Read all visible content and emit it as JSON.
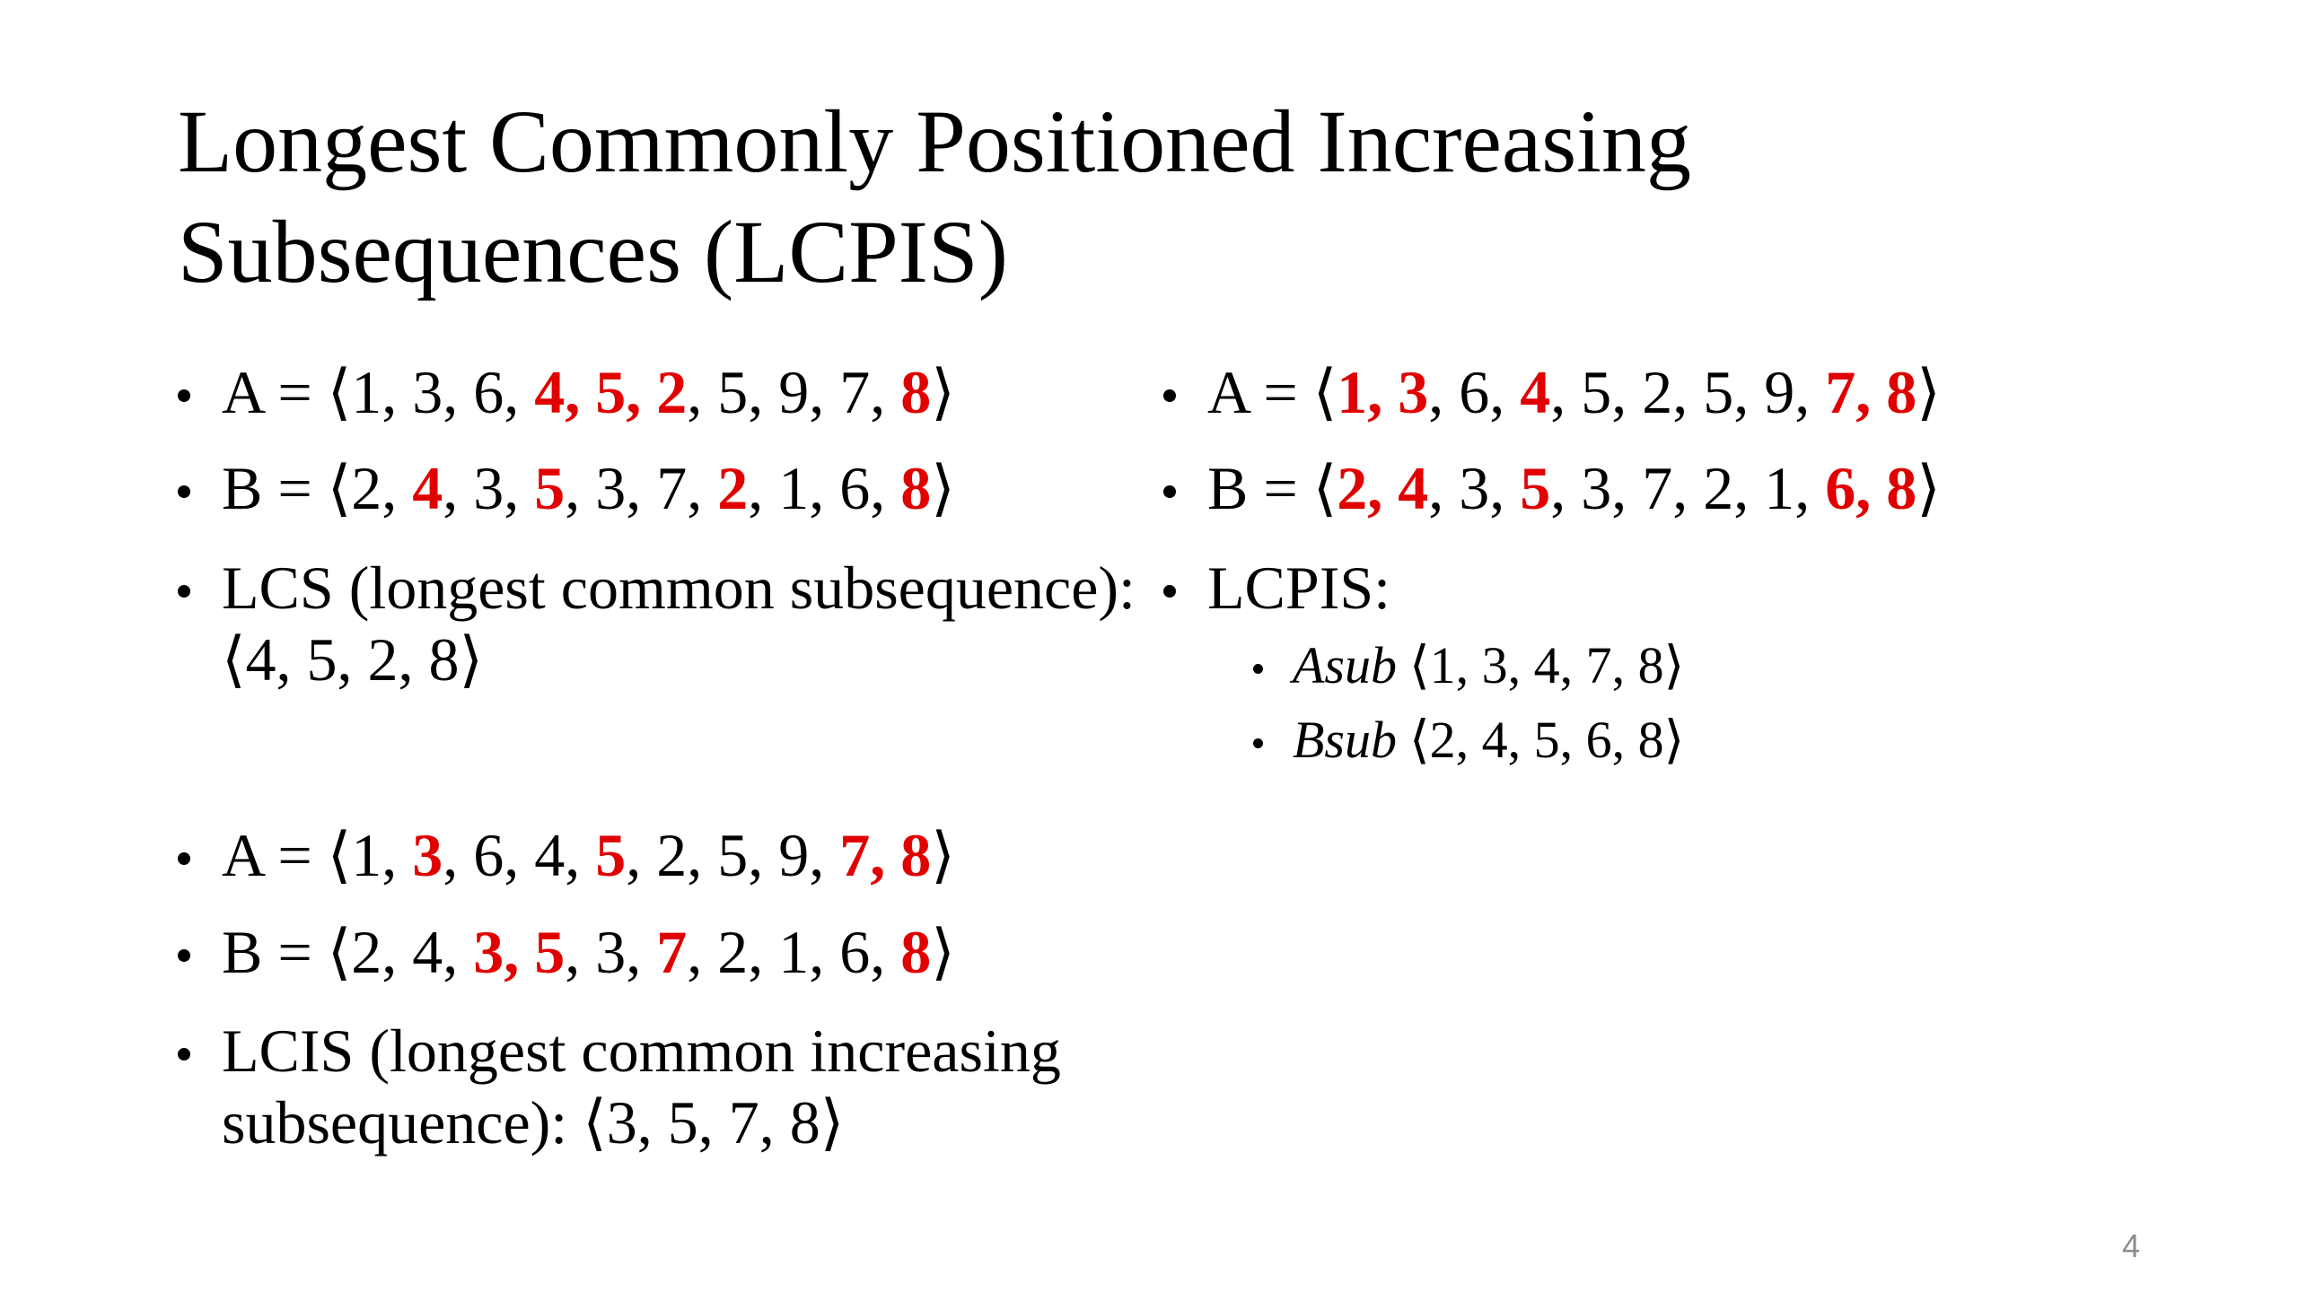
{
  "title": "Longest Commonly Positioned Increasing Subsequences (LCPIS)",
  "page_number": "4",
  "left_top": {
    "sequences": [
      {
        "prefix": "A = ⟨",
        "separator": ", ",
        "suffix": "⟩",
        "items": [
          {
            "value": 1,
            "highlight": false
          },
          {
            "value": 3,
            "highlight": false
          },
          {
            "value": 6,
            "highlight": false
          },
          {
            "value": 4,
            "highlight": true
          },
          {
            "value": 5,
            "highlight": true
          },
          {
            "value": 2,
            "highlight": true
          },
          {
            "value": 5,
            "highlight": false
          },
          {
            "value": 9,
            "highlight": false
          },
          {
            "value": 7,
            "highlight": false
          },
          {
            "value": 8,
            "highlight": true
          }
        ]
      },
      {
        "prefix": "B = ⟨",
        "separator": ", ",
        "suffix": "⟩",
        "items": [
          {
            "value": 2,
            "highlight": false
          },
          {
            "value": 4,
            "highlight": true
          },
          {
            "value": 3,
            "highlight": false
          },
          {
            "value": 5,
            "highlight": true
          },
          {
            "value": 3,
            "highlight": false
          },
          {
            "value": 7,
            "highlight": false
          },
          {
            "value": 2,
            "highlight": true
          },
          {
            "value": 1,
            "highlight": false
          },
          {
            "value": 6,
            "highlight": false
          },
          {
            "value": 8,
            "highlight": true
          }
        ]
      }
    ],
    "result": "LCS (longest common subsequence): ⟨4, 5, 2, 8⟩"
  },
  "left_bottom": {
    "sequences": [
      {
        "prefix": "A = ⟨",
        "separator": ", ",
        "suffix": "⟩",
        "items": [
          {
            "value": 1,
            "highlight": false
          },
          {
            "value": 3,
            "highlight": true
          },
          {
            "value": 6,
            "highlight": false
          },
          {
            "value": 4,
            "highlight": false
          },
          {
            "value": 5,
            "highlight": true
          },
          {
            "value": 2,
            "highlight": false
          },
          {
            "value": 5,
            "highlight": false
          },
          {
            "value": 9,
            "highlight": false
          },
          {
            "value": 7,
            "highlight": true
          },
          {
            "value": 8,
            "highlight": true
          }
        ]
      },
      {
        "prefix": "B = ⟨",
        "separator": ", ",
        "suffix": "⟩",
        "items": [
          {
            "value": 2,
            "highlight": false
          },
          {
            "value": 4,
            "highlight": false
          },
          {
            "value": 3,
            "highlight": true
          },
          {
            "value": 5,
            "highlight": true
          },
          {
            "value": 3,
            "highlight": false
          },
          {
            "value": 7,
            "highlight": true
          },
          {
            "value": 2,
            "highlight": false
          },
          {
            "value": 1,
            "highlight": false
          },
          {
            "value": 6,
            "highlight": false
          },
          {
            "value": 8,
            "highlight": true
          }
        ]
      }
    ],
    "result": "LCIS (longest common increasing subsequence): ⟨3, 5, 7, 8⟩"
  },
  "right": {
    "sequences": [
      {
        "prefix": "A = ⟨",
        "separator": ", ",
        "suffix": "⟩",
        "items": [
          {
            "value": 1,
            "highlight": true
          },
          {
            "value": 3,
            "highlight": true
          },
          {
            "value": 6,
            "highlight": false
          },
          {
            "value": 4,
            "highlight": true
          },
          {
            "value": 5,
            "highlight": false
          },
          {
            "value": 2,
            "highlight": false
          },
          {
            "value": 5,
            "highlight": false
          },
          {
            "value": 9,
            "highlight": false
          },
          {
            "value": 7,
            "highlight": true
          },
          {
            "value": 8,
            "highlight": true
          }
        ]
      },
      {
        "prefix": "B = ⟨",
        "separator": ", ",
        "suffix": "⟩",
        "items": [
          {
            "value": 2,
            "highlight": true
          },
          {
            "value": 4,
            "highlight": true
          },
          {
            "value": 3,
            "highlight": false
          },
          {
            "value": 5,
            "highlight": true
          },
          {
            "value": 3,
            "highlight": false
          },
          {
            "value": 7,
            "highlight": false
          },
          {
            "value": 2,
            "highlight": false
          },
          {
            "value": 1,
            "highlight": false
          },
          {
            "value": 6,
            "highlight": true
          },
          {
            "value": 8,
            "highlight": true
          }
        ]
      }
    ],
    "result": "LCPIS:",
    "sub_items": [
      {
        "label": "Asub",
        "sequence": "⟨1, 3, 4, 7, 8⟩"
      },
      {
        "label": "Bsub",
        "sequence": "⟨2, 4, 5, 6, 8⟩"
      }
    ]
  }
}
